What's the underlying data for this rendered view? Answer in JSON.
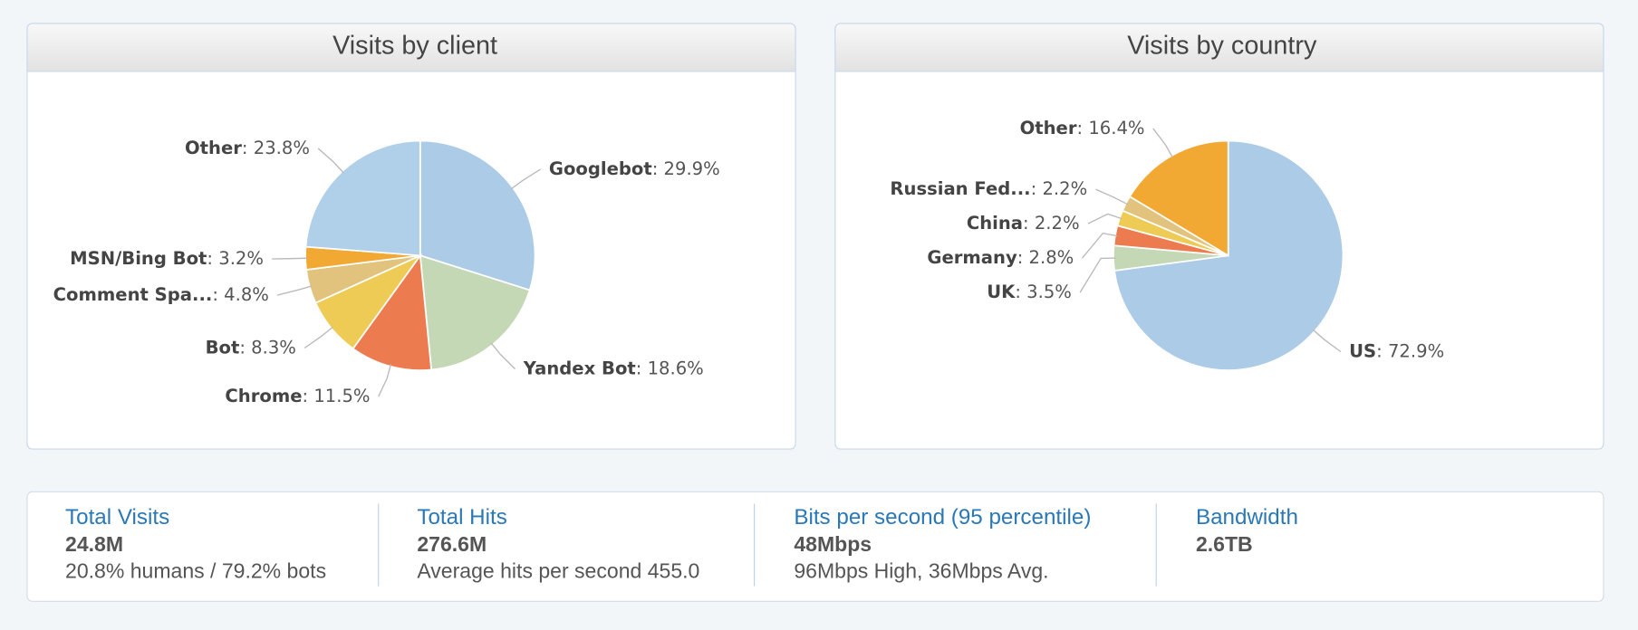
{
  "chart_data": [
    {
      "type": "pie",
      "title": "Visits by client",
      "label_separator": ": ",
      "categories": [
        "Googlebot",
        "Yandex Bot",
        "Chrome",
        "Bot",
        "Comment Spa...",
        "MSN/Bing Bot",
        "Other"
      ],
      "values": [
        29.9,
        18.6,
        11.5,
        8.3,
        4.8,
        3.2,
        23.8
      ],
      "value_labels": [
        "29.9%",
        "18.6%",
        "11.5%",
        "8.3%",
        "4.8%",
        "3.2%",
        "23.8%"
      ],
      "colors": [
        "#abcbe6",
        "#c5d8b6",
        "#ec7b50",
        "#eecb55",
        "#e2c37d",
        "#f2a933",
        "#b0cfe9"
      ]
    },
    {
      "type": "pie",
      "title": "Visits by country",
      "label_separator": ": ",
      "categories": [
        "US",
        "UK",
        "Germany",
        "China",
        "Russian Fed...",
        "Other"
      ],
      "values": [
        72.9,
        3.5,
        2.8,
        2.2,
        2.2,
        16.4
      ],
      "value_labels": [
        "72.9%",
        "3.5%",
        "2.8%",
        "2.2%",
        "2.2%",
        "16.4%"
      ],
      "colors": [
        "#abcbe6",
        "#c5d8b6",
        "#ec7b50",
        "#eecb55",
        "#e2c37d",
        "#f2a933"
      ]
    }
  ],
  "stats": [
    {
      "title": "Total Visits",
      "value": "24.8M",
      "detail": "20.8% humans / 79.2% bots"
    },
    {
      "title": "Total Hits",
      "value": "276.6M",
      "detail": "Average hits per second 455.0"
    },
    {
      "title": "Bits per second (95 percentile)",
      "value": "48Mbps",
      "detail": "96Mbps High, 36Mbps Avg."
    },
    {
      "title": "Bandwidth",
      "value": "2.6TB"
    }
  ]
}
